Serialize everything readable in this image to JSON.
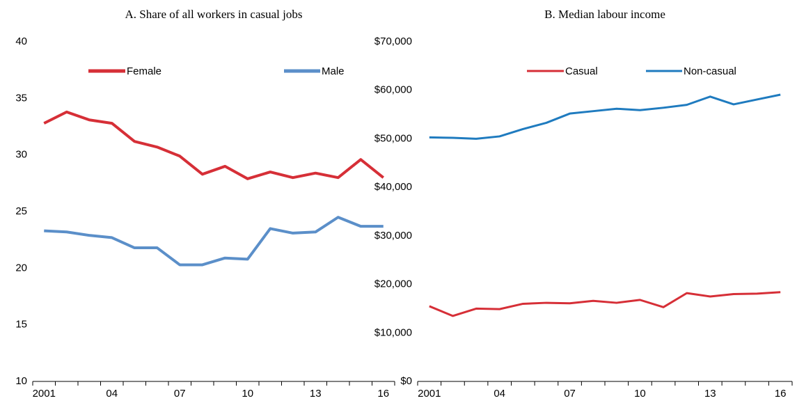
{
  "chart_data": [
    {
      "type": "line",
      "title": "A. Share of all workers in casual jobs",
      "categories": [
        "2001",
        null,
        null,
        "04",
        null,
        null,
        "07",
        null,
        null,
        "10",
        null,
        null,
        "13",
        null,
        null,
        "16"
      ],
      "series": [
        {
          "name": "Female",
          "color": "#d62f37",
          "values": [
            32.8,
            33.8,
            33.1,
            32.8,
            31.2,
            30.7,
            29.9,
            28.3,
            29.0,
            27.9,
            28.5,
            28.0,
            28.4,
            28.0,
            29.6,
            28.0
          ]
        },
        {
          "name": "Male",
          "color": "#5b8fc9",
          "values": [
            23.3,
            23.2,
            22.9,
            22.7,
            21.8,
            21.8,
            20.3,
            20.3,
            20.9,
            20.8,
            23.5,
            23.1,
            23.2,
            24.5,
            23.7,
            23.7
          ]
        }
      ],
      "ylim": [
        10,
        40
      ],
      "yticks": [
        10,
        15,
        20,
        25,
        30,
        35,
        40
      ],
      "grid": false
    },
    {
      "type": "line",
      "title": "B. Median labour income",
      "categories": [
        "2001",
        null,
        null,
        "04",
        null,
        null,
        "07",
        null,
        null,
        "10",
        null,
        null,
        "13",
        null,
        null,
        "16"
      ],
      "series": [
        {
          "name": "Casual",
          "color": "#d62f37",
          "values": [
            15500,
            13500,
            15000,
            14900,
            16000,
            16200,
            16100,
            16600,
            16200,
            16800,
            15300,
            18200,
            17500,
            18000,
            18100,
            18400
          ]
        },
        {
          "name": "Non-casual",
          "color": "#1f7bbf",
          "values": [
            50300,
            50200,
            50000,
            50500,
            52000,
            53300,
            55200,
            55700,
            56200,
            55900,
            56400,
            57000,
            58700,
            57100,
            58100,
            59100
          ]
        }
      ],
      "ylim": [
        0,
        70000
      ],
      "yticks": [
        {
          "value": 0,
          "label": "$0"
        },
        {
          "value": 10000,
          "label": "$10,000"
        },
        {
          "value": 20000,
          "label": "$20,000"
        },
        {
          "value": 30000,
          "label": "$30,000"
        },
        {
          "value": 40000,
          "label": "$40,000"
        },
        {
          "value": 50000,
          "label": "$50,000"
        },
        {
          "value": 60000,
          "label": "$60,000"
        },
        {
          "value": 70000,
          "label": "$70,000"
        }
      ],
      "grid": false
    }
  ]
}
